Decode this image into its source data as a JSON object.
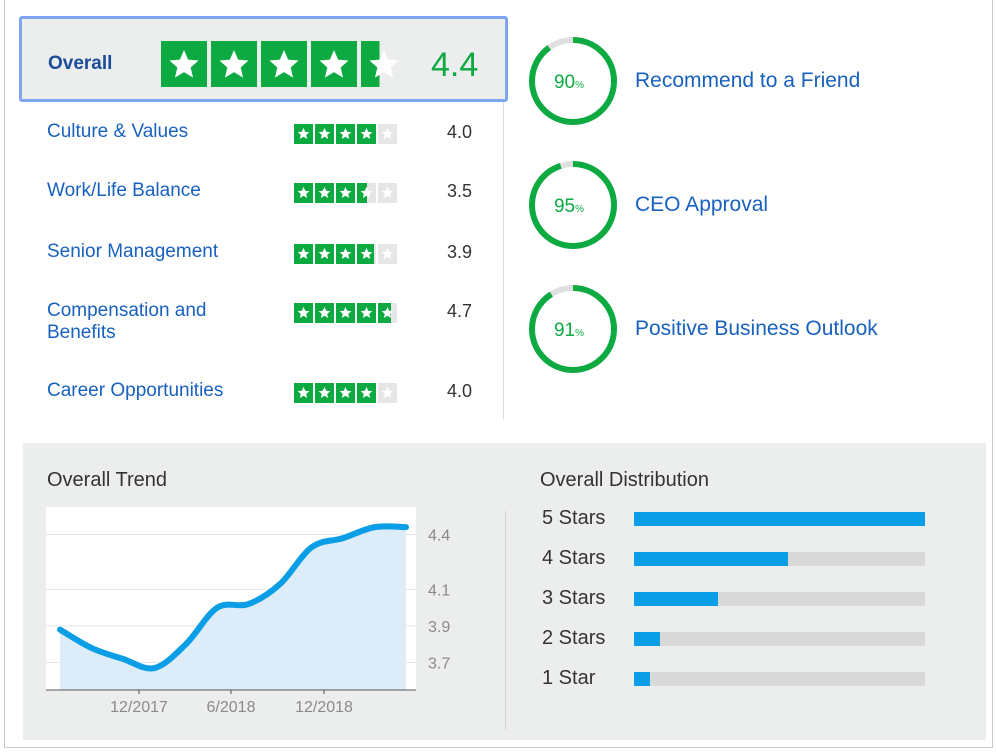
{
  "overall": {
    "label": "Overall",
    "value": "4.4",
    "rating": 4.4
  },
  "categories": [
    {
      "label": "Culture & Values",
      "value": "4.0",
      "rating": 4.0
    },
    {
      "label": "Work/Life Balance",
      "value": "3.5",
      "rating": 3.5
    },
    {
      "label": "Senior Management",
      "value": "3.9",
      "rating": 3.9
    },
    {
      "label": "Compensation and Benefits",
      "value": "4.7",
      "rating": 4.7
    },
    {
      "label": "Career Opportunities",
      "value": "4.0",
      "rating": 4.0
    }
  ],
  "rings": [
    {
      "percent": 90,
      "number": "90",
      "unit": "%",
      "label": "Recommend to a Friend"
    },
    {
      "percent": 95,
      "number": "95",
      "unit": "%",
      "label": "CEO Approval"
    },
    {
      "percent": 91,
      "number": "91",
      "unit": "%",
      "label": "Positive Business Outlook"
    }
  ],
  "trend": {
    "title": "Overall Trend"
  },
  "distribution": {
    "title": "Overall Distribution",
    "rows": [
      {
        "label": "5 Stars",
        "fraction": 1.0
      },
      {
        "label": "4 Stars",
        "fraction": 0.53
      },
      {
        "label": "3 Stars",
        "fraction": 0.29
      },
      {
        "label": "2 Stars",
        "fraction": 0.09
      },
      {
        "label": "1 Star",
        "fraction": 0.055
      }
    ]
  },
  "colors": {
    "star_green": "#0caa41",
    "link_blue": "#1861bf",
    "trend_line": "#0a9ee6",
    "trend_fill": "#dcecf8",
    "selection_border": "#7ea6f0"
  },
  "chart_data": {
    "type": "area",
    "title": "Overall Trend",
    "x": [
      "2017-06",
      "2017-08",
      "2017-10",
      "2017-12",
      "2018-02",
      "2018-04",
      "2018-06",
      "2018-08",
      "2018-10",
      "2018-12",
      "2019-02",
      "2019-04"
    ],
    "values": [
      3.88,
      3.78,
      3.72,
      3.67,
      3.8,
      4.0,
      4.02,
      4.13,
      4.33,
      4.38,
      4.44,
      4.44
    ],
    "xticks": [
      "12/2017",
      "6/2018",
      "12/2018"
    ],
    "yticks": [
      "4.4",
      "4.1",
      "3.9",
      "3.7"
    ],
    "ylim": [
      3.55,
      4.55
    ],
    "grid": true
  }
}
